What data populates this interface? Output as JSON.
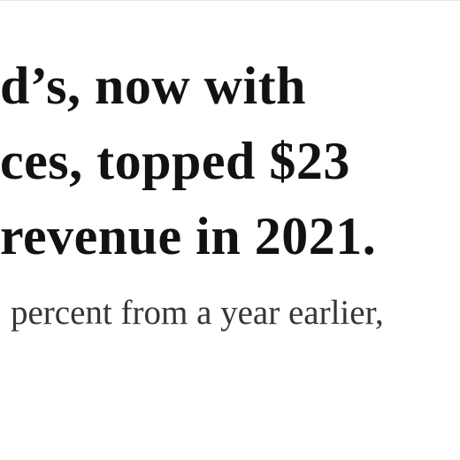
{
  "headline": {
    "lines": [
      "d’s, now with",
      "ces, topped $23",
      "revenue in 2021."
    ]
  },
  "body": {
    "line": "percent from a year earlier,"
  }
}
